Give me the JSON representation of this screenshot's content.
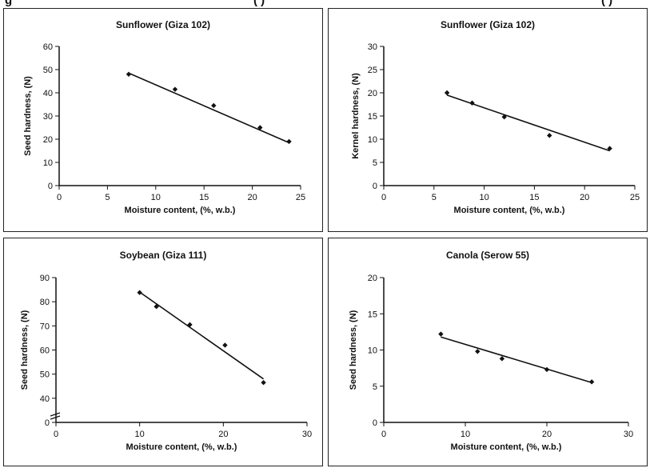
{
  "top_cutoff_text": {
    "left": "g",
    "middle": "( )",
    "right": "( )"
  },
  "chart_data": [
    {
      "type": "scatter",
      "title": "Sunflower (Giza 102)",
      "xlabel": "Moisture content, (%, w.b.)",
      "ylabel": "Seed hardness, (N)",
      "xlim": [
        0,
        25
      ],
      "ylim": [
        0,
        60
      ],
      "xticks": [
        "0",
        "5",
        "10",
        "15",
        "20",
        "25"
      ],
      "yticks": [
        "0",
        "10",
        "20",
        "30",
        "40",
        "50",
        "60"
      ],
      "axis_break": false,
      "x": [
        7.2,
        12,
        16,
        20.8,
        23.8
      ],
      "y": [
        48,
        41.5,
        34.5,
        25,
        19
      ],
      "trendline": [
        [
          7.2,
          48.5
        ],
        [
          23.8,
          18.5
        ]
      ]
    },
    {
      "type": "scatter",
      "title": "Sunflower (Giza 102)",
      "xlabel": "Moisture content, (%, w.b.)",
      "ylabel": "Kernel hardness, (N)",
      "xlim": [
        0,
        25
      ],
      "ylim": [
        0,
        30
      ],
      "xticks": [
        "0",
        "5",
        "10",
        "15",
        "20",
        "25"
      ],
      "yticks": [
        "0",
        "5",
        "10",
        "15",
        "20",
        "25",
        "30"
      ],
      "axis_break": false,
      "x": [
        6.3,
        8.8,
        12,
        16.5,
        22.5
      ],
      "y": [
        20,
        17.8,
        14.8,
        10.8,
        8
      ],
      "trendline": [
        [
          6.3,
          19.5
        ],
        [
          22.5,
          7.5
        ]
      ]
    },
    {
      "type": "scatter",
      "title": "Soybean (Giza 111)",
      "xlabel": "Moisture content, (%, w.b.)",
      "ylabel": "Seed hardness, (N)",
      "xlim": [
        0,
        30
      ],
      "ylim": [
        30,
        90
      ],
      "xticks": [
        "0",
        "10",
        "20",
        "30"
      ],
      "yticks": [
        "40",
        "50",
        "60",
        "70",
        "80",
        "90"
      ],
      "axis_break": true,
      "x": [
        10,
        12,
        16,
        20.2,
        24.8
      ],
      "y": [
        83.8,
        78,
        70.5,
        62,
        46.5
      ],
      "trendline": [
        [
          10,
          84
        ],
        [
          24.8,
          48
        ]
      ]
    },
    {
      "type": "scatter",
      "title": "Canola (Serow 55)",
      "xlabel": "Moisture content, (%, w.b.)",
      "ylabel": "Seed hardness, (N)",
      "xlim": [
        0,
        30
      ],
      "ylim": [
        0,
        20
      ],
      "xticks": [
        "0",
        "10",
        "20",
        "30"
      ],
      "yticks": [
        "0",
        "5",
        "10",
        "15",
        "20"
      ],
      "axis_break": false,
      "x": [
        7,
        11.5,
        14.5,
        20,
        25.5
      ],
      "y": [
        12.2,
        9.8,
        8.8,
        7.3,
        5.6
      ],
      "trendline": [
        [
          7,
          11.8
        ],
        [
          25.5,
          5.5
        ]
      ]
    }
  ]
}
